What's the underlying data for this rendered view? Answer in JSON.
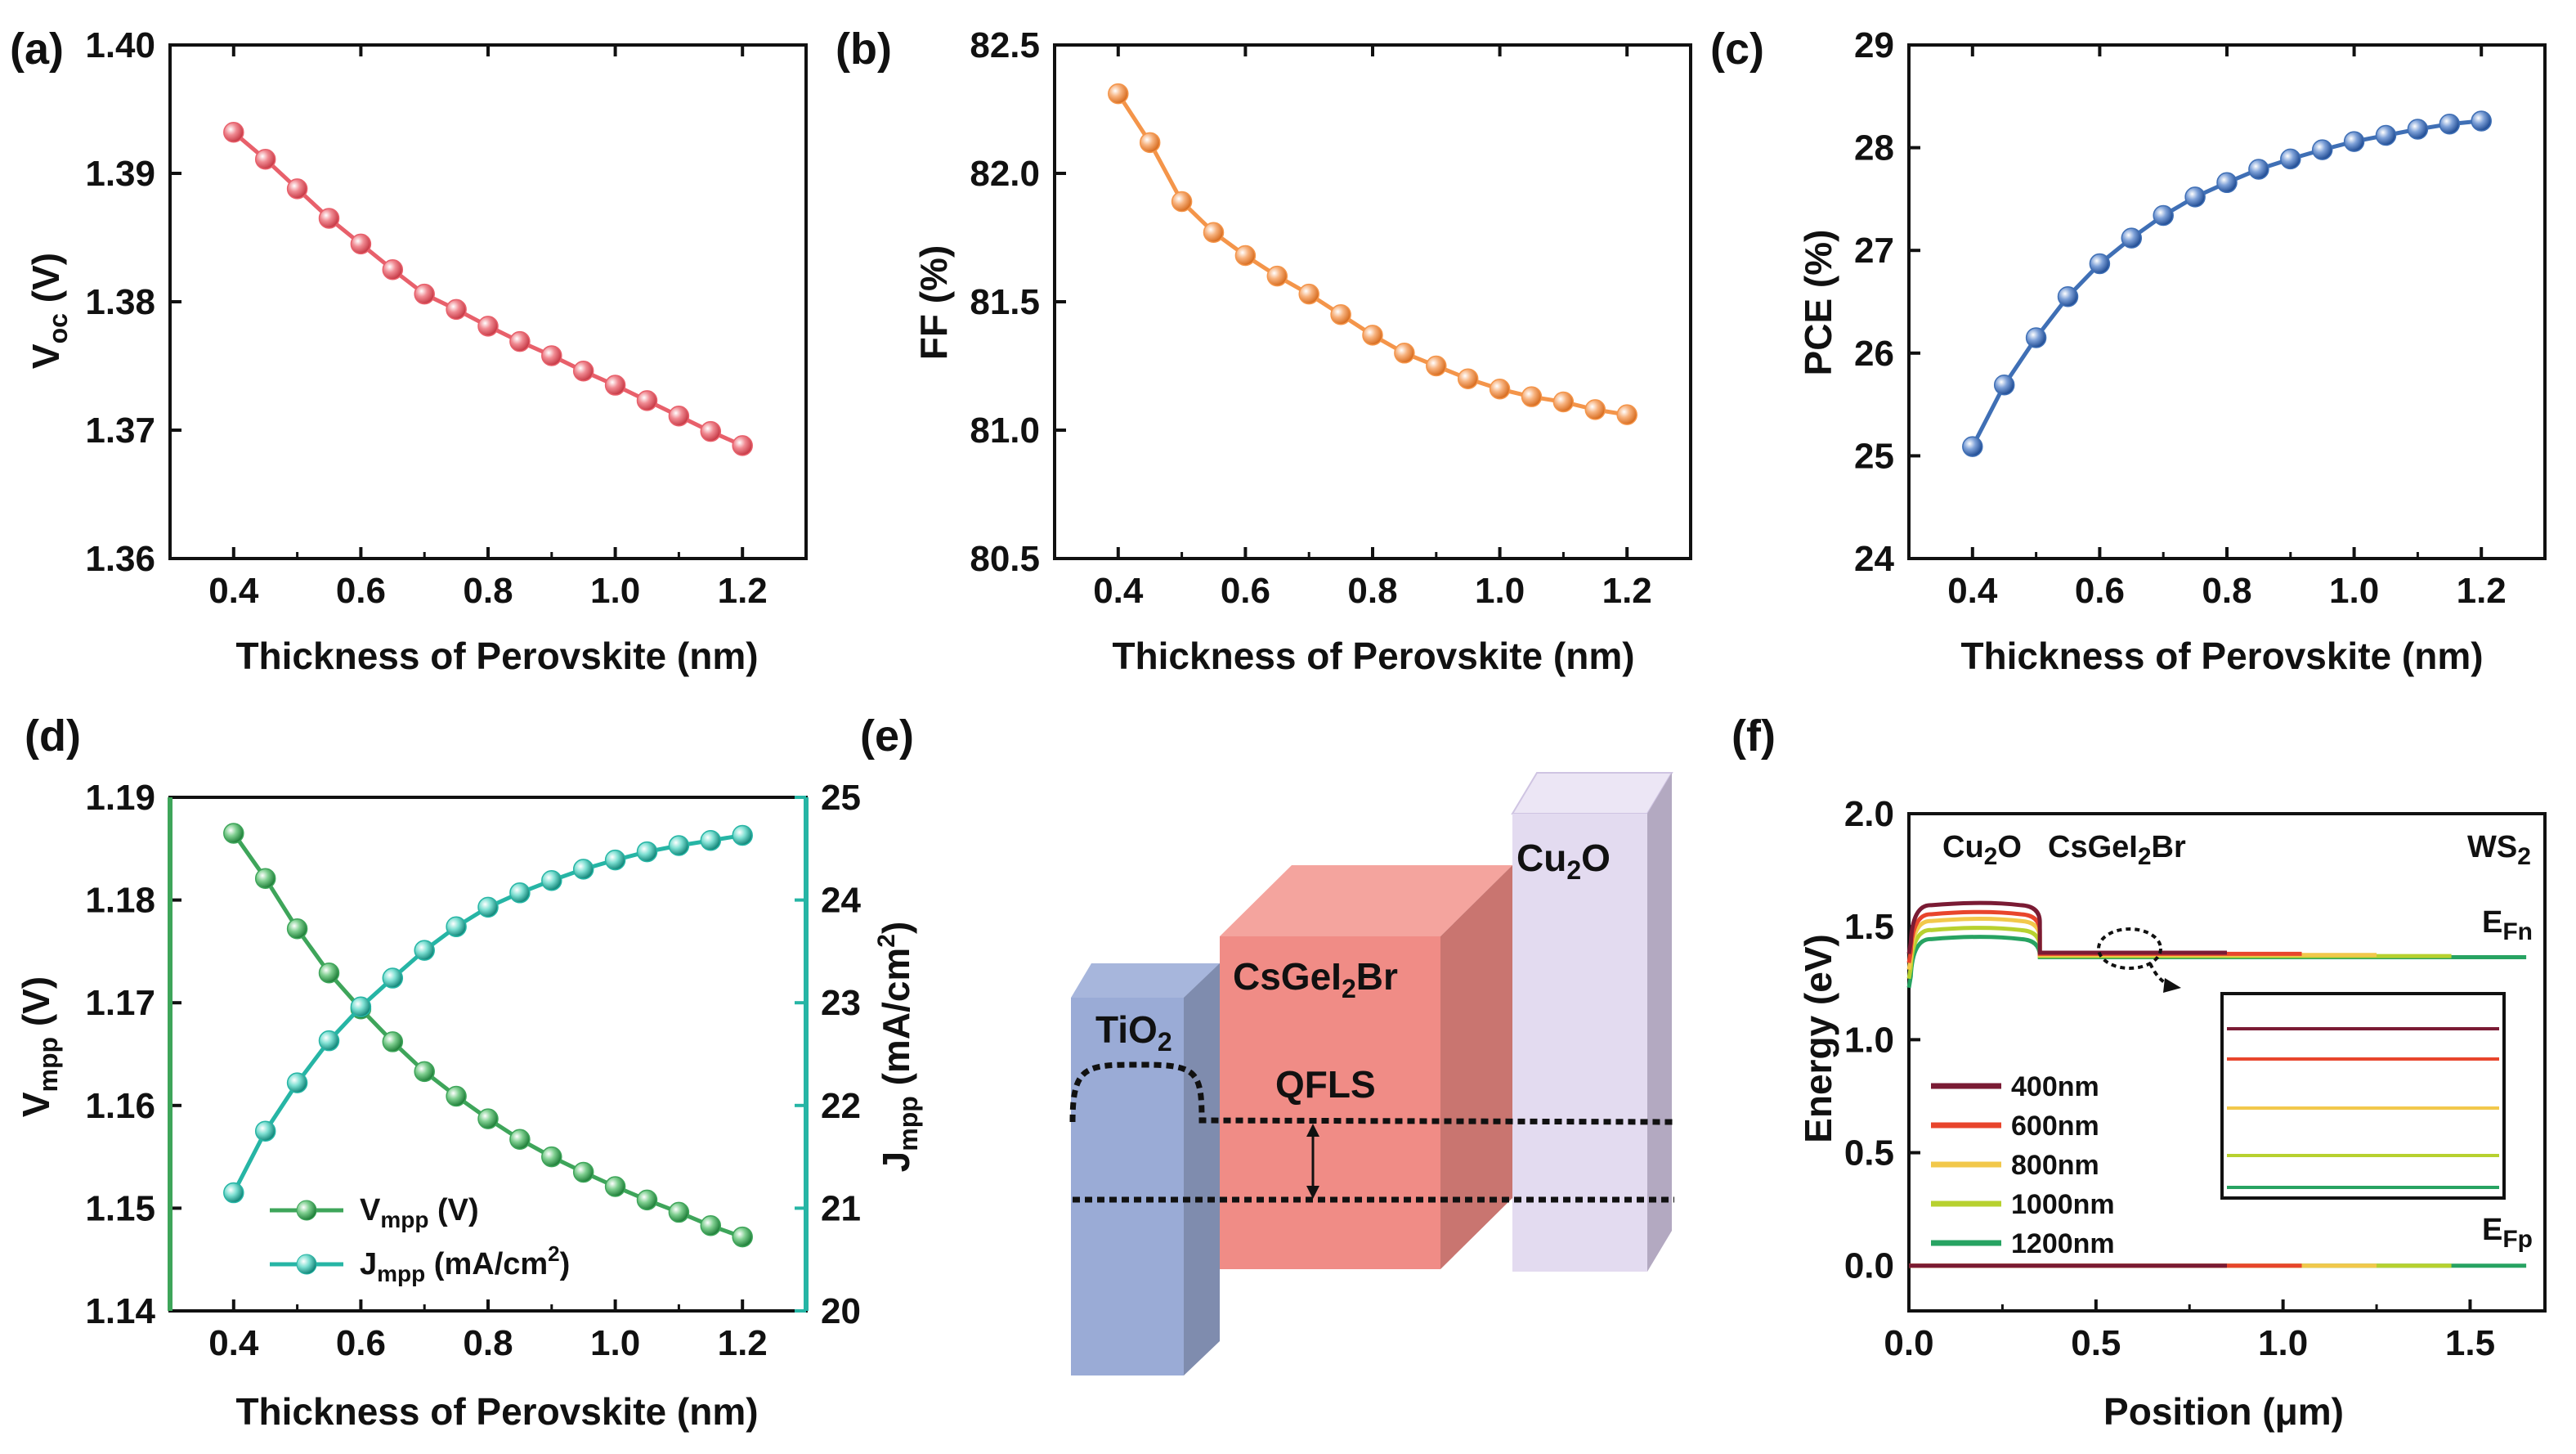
{
  "chart_data": [
    {
      "panel": "a",
      "panel_label": "(a)",
      "type": "line",
      "xlabel": "Thickness of Perovskite (nm)",
      "ylabel": "V",
      "ylabel_sub": "oc",
      "ylabel_unit": " (V)",
      "x": [
        0.4,
        0.45,
        0.5,
        0.55,
        0.6,
        0.65,
        0.7,
        0.75,
        0.8,
        0.85,
        0.9,
        0.95,
        1.0,
        1.05,
        1.1,
        1.15,
        1.2
      ],
      "values": [
        1.3932,
        1.3911,
        1.3888,
        1.3865,
        1.3845,
        1.3825,
        1.3806,
        1.3794,
        1.3781,
        1.3769,
        1.3758,
        1.3746,
        1.3735,
        1.3723,
        1.3711,
        1.3699,
        1.3688
      ],
      "xlim": [
        0.3,
        1.3
      ],
      "ylim": [
        1.36,
        1.4
      ],
      "xticks": [
        "0.4",
        "0.6",
        "0.8",
        "1.0",
        "1.2"
      ],
      "yticks": [
        "1.36",
        "1.37",
        "1.38",
        "1.39",
        "1.40"
      ],
      "color": "#e8606b"
    },
    {
      "panel": "b",
      "panel_label": "(b)",
      "type": "line",
      "xlabel": "Thickness of Perovskite (nm)",
      "ylabel": "FF (%)",
      "x": [
        0.4,
        0.45,
        0.5,
        0.55,
        0.6,
        0.65,
        0.7,
        0.75,
        0.8,
        0.85,
        0.9,
        0.95,
        1.0,
        1.05,
        1.1,
        1.15,
        1.2
      ],
      "values": [
        82.31,
        82.12,
        81.89,
        81.77,
        81.68,
        81.6,
        81.53,
        81.45,
        81.37,
        81.3,
        81.25,
        81.2,
        81.16,
        81.13,
        81.11,
        81.08,
        81.06
      ],
      "xlim": [
        0.3,
        1.3
      ],
      "ylim": [
        80.5,
        82.5
      ],
      "xticks": [
        "0.4",
        "0.6",
        "0.8",
        "1.0",
        "1.2"
      ],
      "yticks": [
        "80.5",
        "81.0",
        "81.5",
        "82.0",
        "82.5"
      ],
      "color": "#f4954a"
    },
    {
      "panel": "c",
      "panel_label": "(c)",
      "type": "line",
      "xlabel": "Thickness of Perovskite (nm)",
      "ylabel": "PCE (%)",
      "x": [
        0.4,
        0.45,
        0.5,
        0.55,
        0.6,
        0.65,
        0.7,
        0.75,
        0.8,
        0.85,
        0.9,
        0.95,
        1.0,
        1.05,
        1.1,
        1.15,
        1.2
      ],
      "values": [
        25.09,
        25.69,
        26.15,
        26.55,
        26.87,
        27.12,
        27.34,
        27.52,
        27.66,
        27.79,
        27.89,
        27.98,
        28.06,
        28.12,
        28.18,
        28.23,
        28.26
      ],
      "xlim": [
        0.3,
        1.3
      ],
      "ylim": [
        24,
        29
      ],
      "xticks": [
        "0.4",
        "0.6",
        "0.8",
        "1.0",
        "1.2"
      ],
      "yticks": [
        "24",
        "25",
        "26",
        "27",
        "28",
        "29"
      ],
      "color": "#3f6fb5"
    },
    {
      "panel": "d",
      "panel_label": "(d)",
      "type": "line",
      "xlabel": "Thickness of Perovskite (nm)",
      "x": [
        0.4,
        0.45,
        0.5,
        0.55,
        0.6,
        0.65,
        0.7,
        0.75,
        0.8,
        0.85,
        0.9,
        0.95,
        1.0,
        1.05,
        1.1,
        1.15,
        1.2
      ],
      "xlim": [
        0.3,
        1.3
      ],
      "xticks": [
        "0.4",
        "0.6",
        "0.8",
        "1.0",
        "1.2"
      ],
      "left_axis": {
        "ylabel": "V",
        "ylabel_sub": "mpp",
        "ylabel_unit": " (V)",
        "ylim": [
          1.14,
          1.19
        ],
        "yticks": [
          "1.14",
          "1.15",
          "1.16",
          "1.17",
          "1.18",
          "1.19"
        ]
      },
      "right_axis": {
        "ylabel": "J",
        "ylabel_sub": "mpp",
        "ylabel_unit": " (mA/cm",
        "ylabel_sup": "2",
        "ylabel_end": ")",
        "ylim": [
          20,
          25
        ],
        "yticks": [
          "20",
          "21",
          "22",
          "23",
          "24",
          "25"
        ],
        "color": "#26b5a5"
      },
      "series": [
        {
          "name": "V",
          "name_sub": "mpp",
          "name_unit": " (V)",
          "axis": "left",
          "color": "#3ea55a",
          "values": [
            1.1865,
            1.1821,
            1.1772,
            1.1729,
            1.1694,
            1.1662,
            1.1633,
            1.1609,
            1.1587,
            1.1567,
            1.155,
            1.1535,
            1.1521,
            1.1508,
            1.1496,
            1.1483,
            1.1472
          ]
        },
        {
          "name": "J",
          "name_sub": "mpp",
          "name_unit": " (mA/cm",
          "name_sup": "2",
          "name_end": ")",
          "axis": "right",
          "color": "#26b5a5",
          "values": [
            21.15,
            21.75,
            22.22,
            22.63,
            22.96,
            23.24,
            23.51,
            23.74,
            23.93,
            24.07,
            24.19,
            24.3,
            24.39,
            24.47,
            24.53,
            24.58,
            24.63
          ]
        }
      ]
    },
    {
      "panel": "e",
      "panel_label": "(e)",
      "type": "diagram",
      "layers": [
        {
          "label": "TiO",
          "sub": "2",
          "color": "#9aabd6"
        },
        {
          "label": "CsGeI",
          "sub": "2",
          "after": "Br",
          "color": "#f08c86"
        },
        {
          "label": "Cu",
          "sub": "2",
          "after": "O",
          "color": "#ddd3ec"
        }
      ],
      "annotation": "QFLS"
    },
    {
      "panel": "f",
      "panel_label": "(f)",
      "type": "line",
      "xlabel": "Position (μm)",
      "ylabel": "Energy (eV)",
      "xlim": [
        0,
        1.7
      ],
      "ylim": [
        -0.2,
        2.0
      ],
      "xticks": [
        "0.0",
        "0.5",
        "1.0",
        "1.5"
      ],
      "yticks": [
        "0.0",
        "0.5",
        "1.0",
        "1.5",
        "2.0"
      ],
      "layer_labels": [
        {
          "text": "Cu",
          "sub": "2",
          "after": "O"
        },
        {
          "text": "CsGeI",
          "sub": "2",
          "after": "Br"
        },
        {
          "text": "WS",
          "sub": "2",
          "after": ""
        }
      ],
      "efn_label": {
        "text": "E",
        "sub": "Fn"
      },
      "efp_label": {
        "text": "E",
        "sub": "Fp"
      },
      "series": [
        {
          "name": "400nm",
          "color": "#7a1b34",
          "thickness_um": 0.4,
          "end_x": 0.85,
          "peak": 1.6,
          "flat": 1.385
        },
        {
          "name": "600nm",
          "color": "#e8452c",
          "thickness_um": 0.6,
          "end_x": 1.05,
          "peak": 1.56,
          "flat": 1.38
        },
        {
          "name": "800nm",
          "color": "#f2c84b",
          "thickness_um": 0.8,
          "end_x": 1.25,
          "peak": 1.53,
          "flat": 1.375
        },
        {
          "name": "1000nm",
          "color": "#b7d12f",
          "thickness_um": 1.0,
          "end_x": 1.45,
          "peak": 1.49,
          "flat": 1.37
        },
        {
          "name": "1200nm",
          "color": "#27a362",
          "thickness_um": 1.2,
          "end_x": 1.65,
          "peak": 1.45,
          "flat": 1.365
        }
      ],
      "cu2o_width_um": 0.35,
      "efp_level": 0.0
    }
  ]
}
